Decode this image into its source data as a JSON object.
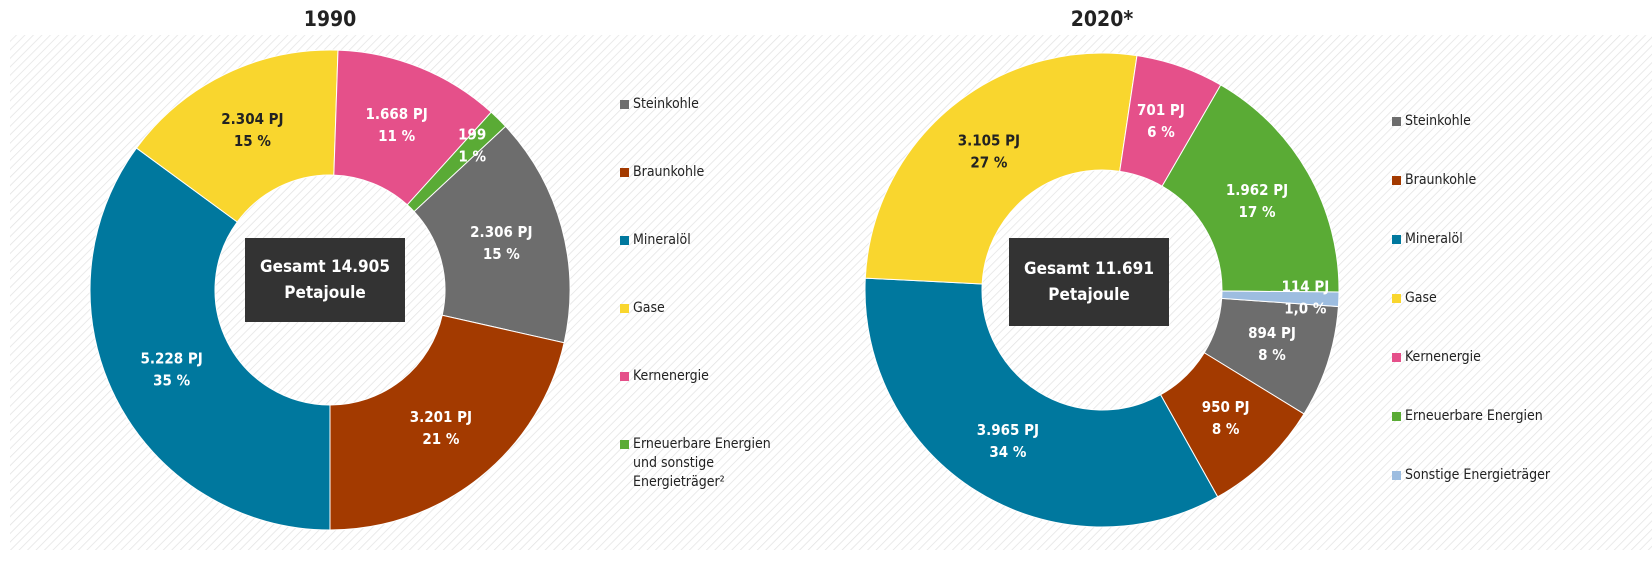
{
  "chart_data": [
    {
      "type": "donut",
      "title": "1990",
      "categories": [
        "Steinkohle",
        "Braunkohle",
        "Mineralöl",
        "Gase",
        "Kernenergie",
        "Erneuerbare Energien und sonstige Energieträger²"
      ],
      "values": [
        2306,
        3201,
        5228,
        2304,
        1668,
        199
      ],
      "value_labels": [
        "2.306 PJ",
        "3.201 PJ",
        "5.228 PJ",
        "2.304 PJ",
        "1.668 PJ",
        "199"
      ],
      "percent_labels": [
        "15 %",
        "21 %",
        "35 %",
        "15 %",
        "11 %",
        "1 %"
      ],
      "colors": [
        "#6d6d6d",
        "#a33a00",
        "#00789e",
        "#f9d62e",
        "#e5508a",
        "#5aab35"
      ],
      "label_colors": [
        "#ffffff",
        "#ffffff",
        "#ffffff",
        "#222222",
        "#ffffff",
        "#ffffff"
      ],
      "center_label": [
        "Gesamt 14.905",
        "Petajoule"
      ]
    },
    {
      "type": "donut",
      "title": "2020*",
      "categories": [
        "Steinkohle",
        "Braunkohle",
        "Mineralöl",
        "Gase",
        "Kernenergie",
        "Erneuerbare Energien",
        "Sonstige Energieträger"
      ],
      "values": [
        894,
        950,
        3965,
        3105,
        701,
        1962,
        114
      ],
      "value_labels": [
        "894 PJ",
        "950 PJ",
        "3.965 PJ",
        "3.105 PJ",
        "701 PJ",
        "1.962 PJ",
        "114 PJ"
      ],
      "percent_labels": [
        "8 %",
        "8 %",
        "34 %",
        "27 %",
        "6 %",
        "17 %",
        "1,0 %"
      ],
      "colors": [
        "#6d6d6d",
        "#a33a00",
        "#00789e",
        "#f9d62e",
        "#e5508a",
        "#5aab35",
        "#9dbde0"
      ],
      "label_colors": [
        "#ffffff",
        "#ffffff",
        "#ffffff",
        "#222222",
        "#ffffff",
        "#ffffff",
        "#ffffff"
      ],
      "center_label": [
        "Gesamt 11.691",
        "Petajoule"
      ]
    }
  ]
}
